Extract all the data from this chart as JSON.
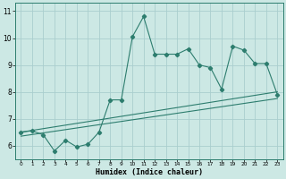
{
  "title": "",
  "xlabel": "Humidex (Indice chaleur)",
  "bg_color": "#cce8e4",
  "line_color": "#2d7d6e",
  "grid_color": "#aacece",
  "xlim": [
    -0.5,
    23.5
  ],
  "ylim": [
    5.5,
    11.3
  ],
  "xticks": [
    0,
    1,
    2,
    3,
    4,
    5,
    6,
    7,
    8,
    9,
    10,
    11,
    12,
    13,
    14,
    15,
    16,
    17,
    18,
    19,
    20,
    21,
    22,
    23
  ],
  "yticks": [
    6,
    7,
    8,
    9,
    10,
    11
  ],
  "zigzag_x": [
    0,
    1,
    2,
    3,
    4,
    5,
    6,
    7,
    8,
    9,
    10,
    11,
    12,
    13,
    14,
    15,
    16,
    17,
    18,
    19,
    20,
    21,
    22,
    23
  ],
  "zigzag_y": [
    6.5,
    6.55,
    6.4,
    5.8,
    6.2,
    5.95,
    6.05,
    6.5,
    7.7,
    7.7,
    10.05,
    10.8,
    9.4,
    9.4,
    9.4,
    9.6,
    9.0,
    8.9,
    8.1,
    9.7,
    9.55,
    9.05,
    9.05,
    7.9
  ],
  "line1_x": [
    0,
    23
  ],
  "line1_y": [
    6.5,
    8.0
  ],
  "line2_x": [
    0,
    23
  ],
  "line2_y": [
    6.35,
    7.75
  ]
}
